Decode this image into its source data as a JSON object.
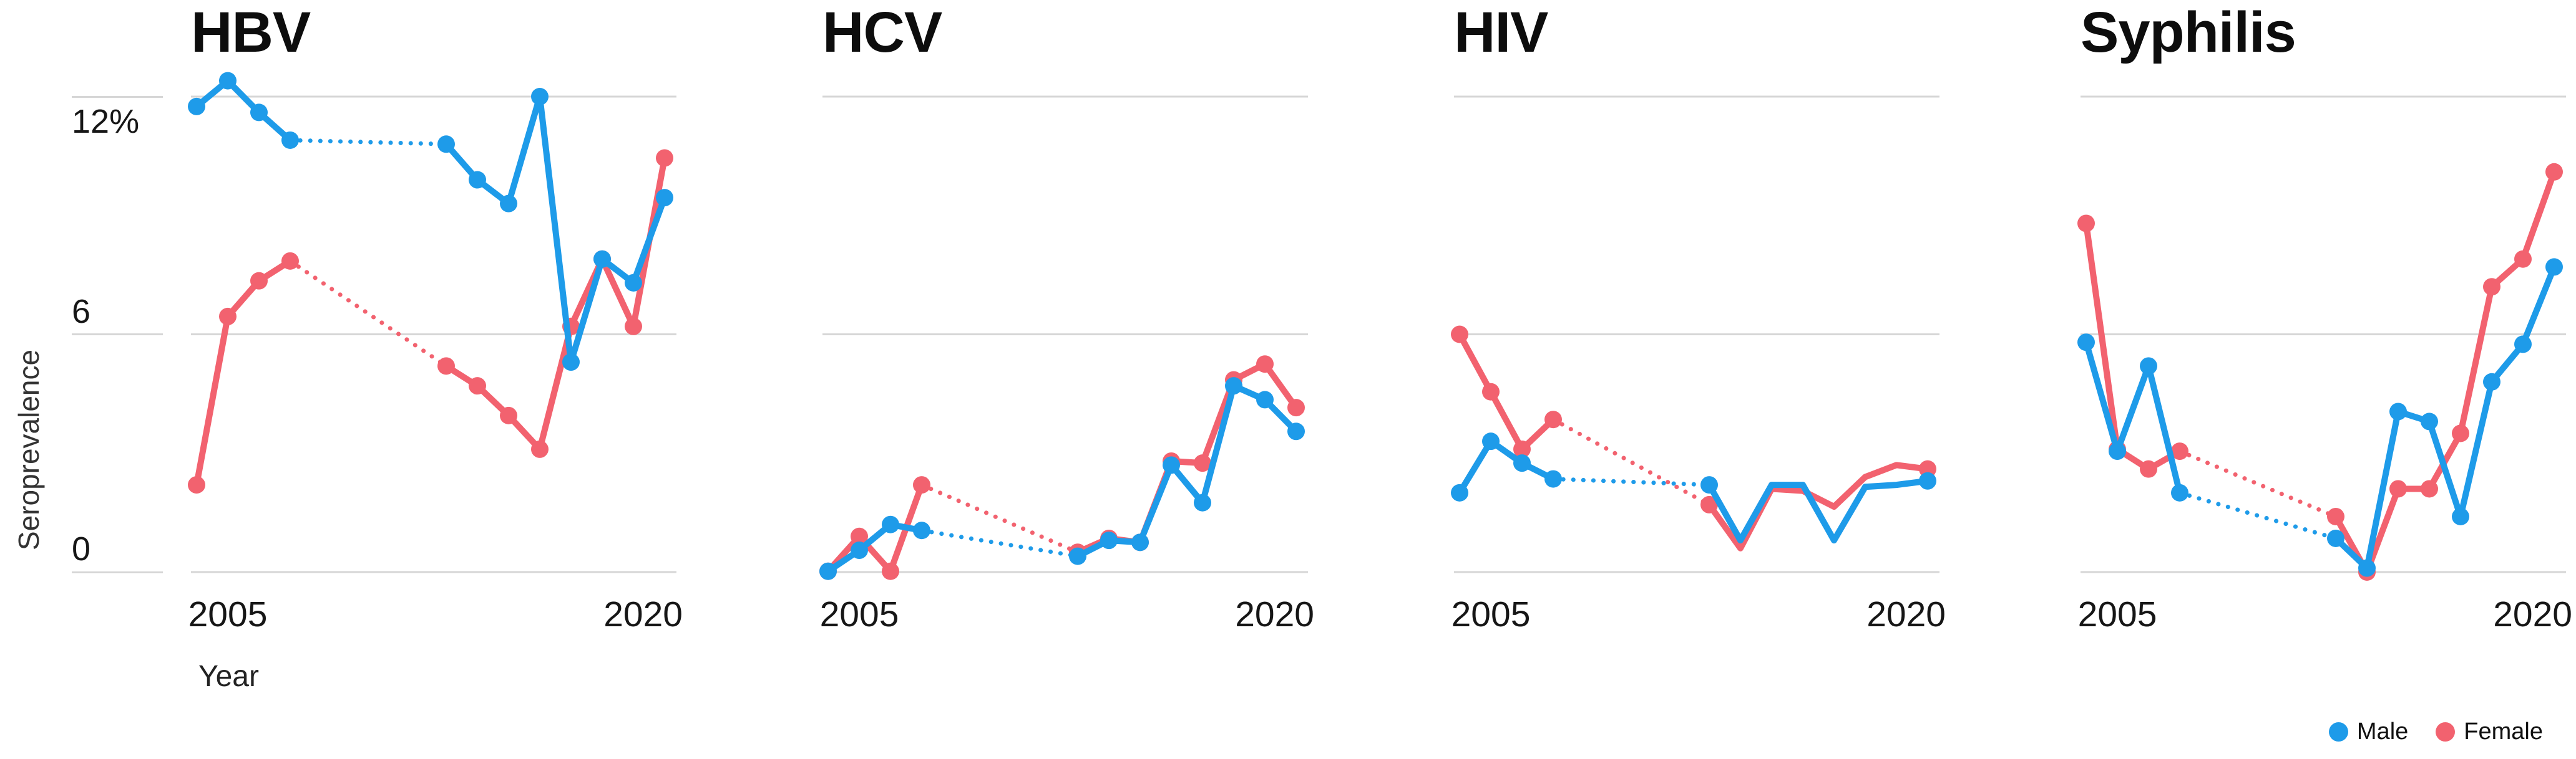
{
  "axes": {
    "y_label": "Seroprevalence",
    "x_label": "Year",
    "y_ticks": [
      {
        "value": 12,
        "label": "12%"
      },
      {
        "value": 6,
        "label": "6"
      },
      {
        "value": 0,
        "label": "0"
      }
    ],
    "x_tick_labels": [
      "2005",
      "2020"
    ],
    "y_range": [
      0,
      12
    ],
    "grid_color": "#d6d6d6",
    "grid_on": true
  },
  "legend": {
    "position": "bottom-right",
    "items": [
      {
        "label": "Male",
        "color": "#1e9be9"
      },
      {
        "label": "Female",
        "color": "#f2626f"
      }
    ]
  },
  "chart_data": [
    {
      "type": "line",
      "title": "HBV",
      "x": [
        2004,
        2005,
        2006,
        2007,
        2012,
        2013,
        2014,
        2015,
        2016,
        2017,
        2018,
        2019
      ],
      "data_gap": {
        "after_year": 2007,
        "resume_year": 2012,
        "style": "dotted"
      },
      "markers": "all",
      "series": [
        {
          "name": "Male",
          "color": "#1e9be9",
          "values": [
            11.75,
            12.4,
            11.6,
            10.9,
            10.8,
            9.9,
            9.3,
            12.0,
            5.3,
            7.9,
            7.3,
            9.45
          ]
        },
        {
          "name": "Female",
          "color": "#f2626f",
          "values": [
            2.2,
            6.45,
            7.35,
            7.85,
            5.2,
            4.7,
            3.95,
            3.1,
            6.2,
            7.9,
            6.2,
            10.45
          ]
        }
      ]
    },
    {
      "type": "line",
      "title": "HCV",
      "x": [
        2004,
        2005,
        2006,
        2007,
        2012,
        2013,
        2014,
        2015,
        2016,
        2017,
        2018,
        2019
      ],
      "data_gap": {
        "after_year": 2007,
        "resume_year": 2012,
        "style": "dotted"
      },
      "markers": "all",
      "series": [
        {
          "name": "Male",
          "color": "#1e9be9",
          "values": [
            0.02,
            0.55,
            1.2,
            1.05,
            0.4,
            0.8,
            0.75,
            2.7,
            1.75,
            4.7,
            4.35,
            3.55
          ]
        },
        {
          "name": "Female",
          "color": "#f2626f",
          "values": [
            0.02,
            0.9,
            0.02,
            2.2,
            0.5,
            0.85,
            0.75,
            2.8,
            2.75,
            4.85,
            5.25,
            4.15
          ]
        }
      ]
    },
    {
      "type": "line",
      "title": "HIV",
      "x": [
        2004,
        2005,
        2006,
        2007,
        2012,
        2013,
        2014,
        2015,
        2016,
        2017,
        2018,
        2019
      ],
      "data_gap": {
        "after_year": 2007,
        "resume_year": 2012,
        "style": "dotted"
      },
      "markers": "some",
      "marker_indices": [
        0,
        1,
        2,
        3,
        4,
        11
      ],
      "series": [
        {
          "name": "Male",
          "color": "#1e9be9",
          "values": [
            2.0,
            3.3,
            2.75,
            2.35,
            2.2,
            0.8,
            2.2,
            2.2,
            0.8,
            2.15,
            2.2,
            2.3
          ]
        },
        {
          "name": "Female",
          "color": "#f2626f",
          "values": [
            6.0,
            4.55,
            3.1,
            3.85,
            1.7,
            0.6,
            2.1,
            2.05,
            1.65,
            2.4,
            2.7,
            2.6
          ]
        }
      ]
    },
    {
      "type": "line",
      "title": "Syphilis",
      "x": [
        2004,
        2005,
        2006,
        2007,
        2012,
        2013,
        2014,
        2015,
        2016,
        2017,
        2018,
        2019
      ],
      "data_gap": {
        "after_year": 2007,
        "resume_year": 2012,
        "style": "dotted"
      },
      "markers": "all",
      "series": [
        {
          "name": "Male",
          "color": "#1e9be9",
          "values": [
            5.8,
            3.05,
            5.2,
            2.0,
            0.85,
            0.1,
            4.05,
            3.8,
            1.4,
            4.8,
            5.75,
            7.7
          ]
        },
        {
          "name": "Female",
          "color": "#f2626f",
          "values": [
            8.8,
            3.1,
            2.6,
            3.05,
            1.4,
            0.0,
            2.1,
            2.1,
            3.5,
            7.2,
            7.9,
            10.1
          ]
        }
      ]
    }
  ]
}
